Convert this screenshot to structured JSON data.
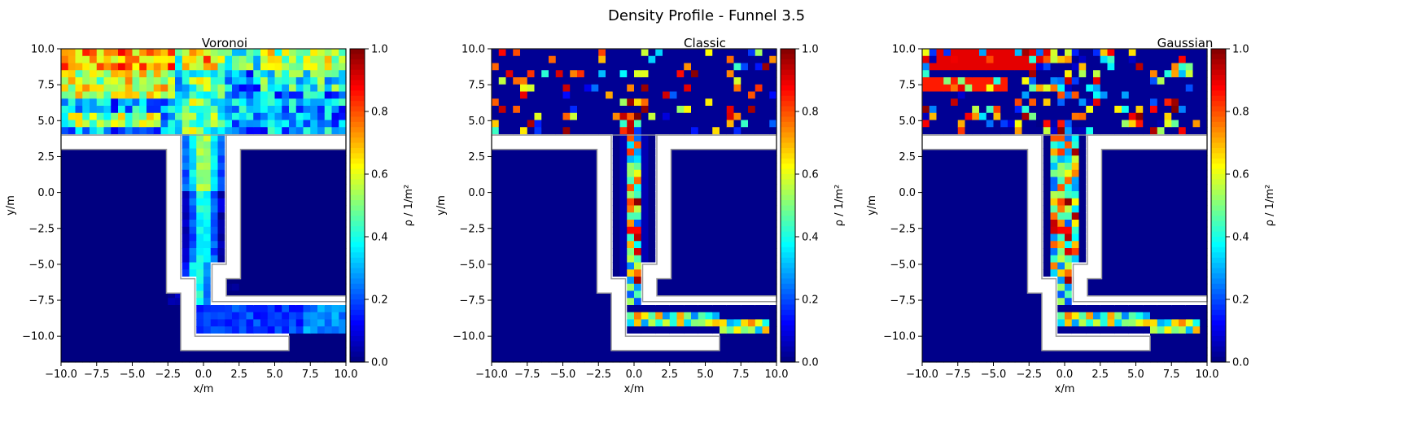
{
  "figure": {
    "suptitle": "Density Profile - Funnel  3.5"
  },
  "chart_data": [
    {
      "type": "heatmap",
      "title": "Voronoi",
      "xlabel": "x/m",
      "ylabel": "y/m",
      "xlim": [
        -10,
        10
      ],
      "ylim": [
        -11.8,
        10
      ],
      "xticks": [
        "−10.0",
        "−7.5",
        "−5.0",
        "−2.5",
        "0.0",
        "2.5",
        "5.0",
        "7.5",
        "10.0"
      ],
      "yticks": [
        "−10.0",
        "−7.5",
        "−5.0",
        "−2.5",
        "0.0",
        "2.5",
        "5.0",
        "7.5",
        "10.0"
      ],
      "colorbar": {
        "label": "ρ / 1/m²",
        "range": [
          0,
          1
        ],
        "ticks": [
          "0.0",
          "0.2",
          "0.4",
          "0.6",
          "0.8",
          "1.0"
        ],
        "colormap": "jet"
      },
      "grid": false
    },
    {
      "type": "heatmap",
      "title": "Classic",
      "xlabel": "x/m",
      "ylabel": "y/m",
      "xlim": [
        -10,
        10
      ],
      "ylim": [
        -11.8,
        10
      ],
      "xticks": [
        "−10.0",
        "−7.5",
        "−5.0",
        "−2.5",
        "0.0",
        "2.5",
        "5.0",
        "7.5",
        "10.0"
      ],
      "yticks": [
        "−10.0",
        "−7.5",
        "−5.0",
        "−2.5",
        "0.0",
        "2.5",
        "5.0",
        "7.5",
        "10.0"
      ],
      "colorbar": {
        "label": "ρ / 1/m²",
        "range": [
          0,
          1
        ],
        "ticks": [
          "0.0",
          "0.2",
          "0.4",
          "0.6",
          "0.8",
          "1.0"
        ],
        "colormap": "jet"
      },
      "grid": false
    },
    {
      "type": "heatmap",
      "title": "Gaussian",
      "xlabel": "x/m",
      "ylabel": "y/m",
      "xlim": [
        -10,
        10
      ],
      "ylim": [
        -11.8,
        10
      ],
      "xticks": [
        "−10.0",
        "−7.5",
        "−5.0",
        "−2.5",
        "0.0",
        "2.5",
        "5.0",
        "7.5",
        "10.0"
      ],
      "yticks": [
        "−10.0",
        "−7.5",
        "−5.0",
        "−2.5",
        "0.0",
        "2.5",
        "5.0",
        "7.5",
        "10.0"
      ],
      "colorbar": {
        "label": "ρ / 1/m²",
        "range": [
          0,
          1
        ],
        "ticks": [
          "0.0",
          "0.2",
          "0.4",
          "0.6",
          "0.8",
          "1.0"
        ],
        "colormap": "jet"
      },
      "grid": false
    }
  ],
  "geometry_walls": {
    "upper_room": [
      [
        -10,
        10
      ],
      [
        10,
        10
      ],
      [
        10,
        4
      ],
      [
        -10,
        4
      ]
    ],
    "left_wall": [
      [
        -10,
        4
      ],
      [
        -1.6,
        4
      ],
      [
        -1.6,
        -6
      ],
      [
        -0.6,
        -6
      ],
      [
        -0.6,
        -10
      ],
      [
        6,
        -10
      ],
      [
        6,
        -11
      ],
      [
        -1.6,
        -11
      ],
      [
        -1.6,
        -7
      ],
      [
        -2.6,
        -7
      ],
      [
        -2.6,
        3
      ],
      [
        -10,
        3
      ]
    ],
    "right_wall": [
      [
        1.6,
        4
      ],
      [
        10,
        4
      ],
      [
        10,
        3
      ],
      [
        2.6,
        3
      ],
      [
        2.6,
        -6
      ],
      [
        1.6,
        -6
      ],
      [
        1.6,
        -7.2
      ],
      [
        10,
        -7.2
      ],
      [
        10,
        -7.6
      ],
      [
        0.6,
        -7.6
      ],
      [
        0.6,
        -5
      ],
      [
        1.6,
        -5
      ]
    ]
  }
}
